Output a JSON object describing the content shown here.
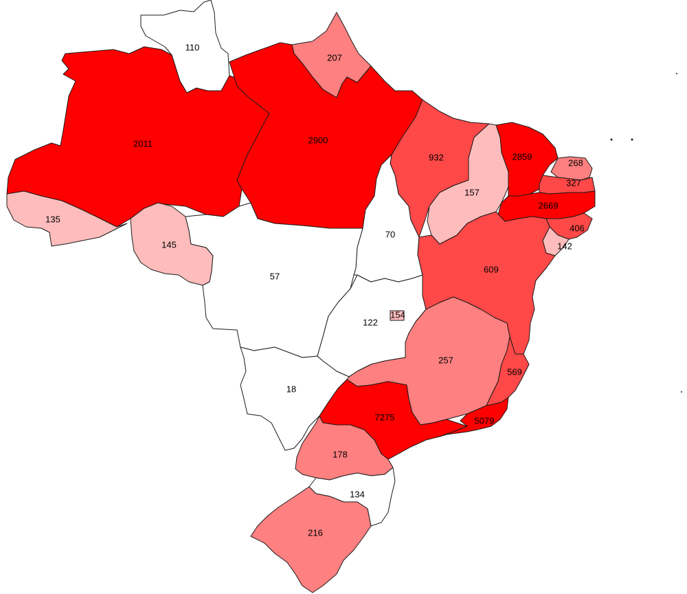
{
  "colors": {
    "none": "#ffffff",
    "light": "#ffbcbc",
    "medium": "#ff8080",
    "strong": "#ff4848",
    "max": "#ff0000"
  },
  "states": [
    {
      "id": "RR",
      "value": "110",
      "level": "none"
    },
    {
      "id": "AP",
      "value": "207",
      "level": "medium"
    },
    {
      "id": "AM",
      "value": "2011",
      "level": "max"
    },
    {
      "id": "PA",
      "value": "2900",
      "level": "max"
    },
    {
      "id": "MA",
      "value": "932",
      "level": "strong"
    },
    {
      "id": "CE",
      "value": "2859",
      "level": "max"
    },
    {
      "id": "RN",
      "value": "268",
      "level": "medium"
    },
    {
      "id": "PB",
      "value": "327",
      "level": "strong"
    },
    {
      "id": "PE",
      "value": "2669",
      "level": "max"
    },
    {
      "id": "AL",
      "value": "406",
      "level": "strong"
    },
    {
      "id": "SE",
      "value": "142",
      "level": "light"
    },
    {
      "id": "PI",
      "value": "157",
      "level": "light"
    },
    {
      "id": "AC",
      "value": "135",
      "level": "light"
    },
    {
      "id": "RO",
      "value": "145",
      "level": "light"
    },
    {
      "id": "TO",
      "value": "70",
      "level": "none"
    },
    {
      "id": "MT",
      "value": "57",
      "level": "none"
    },
    {
      "id": "BA",
      "value": "609",
      "level": "strong"
    },
    {
      "id": "GO",
      "value": "122",
      "level": "none"
    },
    {
      "id": "DF",
      "value": "154",
      "level": "light"
    },
    {
      "id": "MG",
      "value": "257",
      "level": "medium"
    },
    {
      "id": "ES",
      "value": "569",
      "level": "strong"
    },
    {
      "id": "MS",
      "value": "18",
      "level": "none"
    },
    {
      "id": "SP",
      "value": "7275",
      "level": "max"
    },
    {
      "id": "RJ",
      "value": "5079",
      "level": "max"
    },
    {
      "id": "PR",
      "value": "178",
      "level": "medium"
    },
    {
      "id": "SC",
      "value": "134",
      "level": "none"
    },
    {
      "id": "RS",
      "value": "216",
      "level": "medium"
    }
  ]
}
